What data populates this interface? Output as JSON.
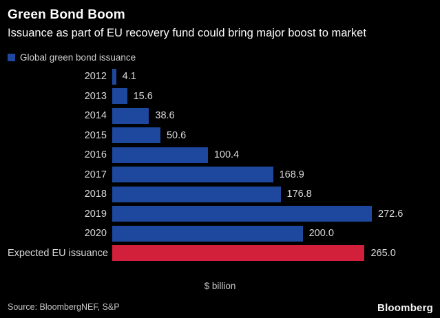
{
  "header": {
    "title": "Green Bond Boom",
    "subtitle": "Issuance as part of EU recovery fund could bring major boost to market"
  },
  "legend": {
    "label": "Global green bond issuance",
    "swatch_color": "#1e489e"
  },
  "chart_data": {
    "type": "bar",
    "orientation": "horizontal",
    "categories": [
      "2012",
      "2013",
      "2014",
      "2015",
      "2016",
      "2017",
      "2018",
      "2019",
      "2020",
      "Expected EU issuance"
    ],
    "values": [
      4.1,
      15.6,
      38.6,
      50.6,
      100.4,
      168.9,
      176.8,
      272.6,
      200.0,
      265.0
    ],
    "value_labels": [
      "4.1",
      "15.6",
      "38.6",
      "50.6",
      "100.4",
      "168.9",
      "176.8",
      "272.6",
      "200.0",
      "265.0"
    ],
    "bar_colors": [
      "#1e489e",
      "#1e489e",
      "#1e489e",
      "#1e489e",
      "#1e489e",
      "#1e489e",
      "#1e489e",
      "#1e489e",
      "#1e489e",
      "#d2203a"
    ],
    "title": "Green Bond Boom",
    "xlabel": "$ billion",
    "ylabel": "",
    "xlim": [
      0,
      272.6
    ],
    "grid": false,
    "legend_position": "top-left",
    "legend_entries": [
      "Global green bond issuance"
    ]
  },
  "footer": {
    "source": "Source: BloombergNEF, S&P",
    "brand": "Bloomberg"
  },
  "colors": {
    "background": "#000000",
    "bar_blue": "#1e489e",
    "bar_red": "#d2203a",
    "text_primary": "#ffffff",
    "text_secondary": "#dadada"
  }
}
